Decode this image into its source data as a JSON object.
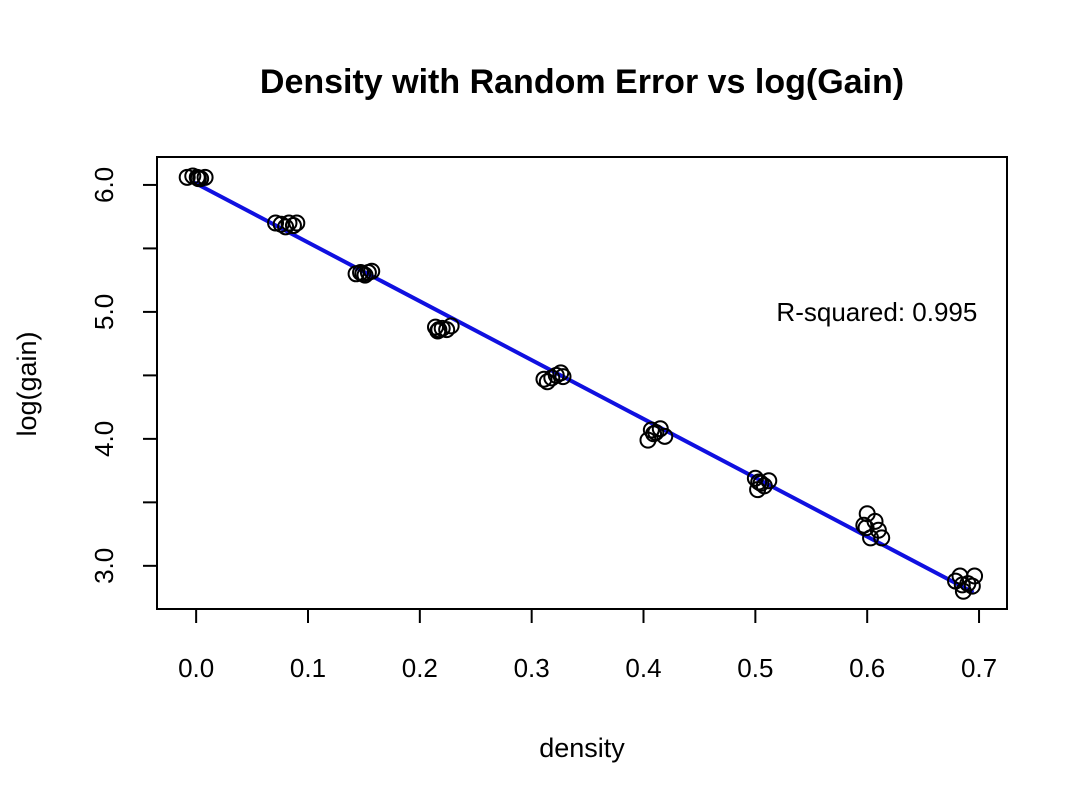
{
  "chart_data": {
    "type": "scatter",
    "title": "Density with Random Error vs log(Gain)",
    "xlabel": "density",
    "ylabel": "log(gain)",
    "xlim": [
      -0.035,
      0.725
    ],
    "ylim": [
      2.66,
      6.22
    ],
    "x_ticks": [
      0.0,
      0.1,
      0.2,
      0.3,
      0.4,
      0.5,
      0.6,
      0.7
    ],
    "x_tick_labels": [
      "0.0",
      "0.1",
      "0.2",
      "0.3",
      "0.4",
      "0.5",
      "0.6",
      "0.7"
    ],
    "y_ticks": [
      3.0,
      3.5,
      4.0,
      4.5,
      5.0,
      5.5,
      6.0
    ],
    "y_tick_labels": [
      "3.0",
      "",
      "4.0",
      "",
      "5.0",
      "",
      "6.0"
    ],
    "grid": false,
    "points": {
      "x": [
        -0.008,
        -0.003,
        0.001,
        0.004,
        0.008,
        0.002,
        0.071,
        0.076,
        0.08,
        0.083,
        0.087,
        0.09,
        0.143,
        0.147,
        0.151,
        0.154,
        0.157,
        0.149,
        0.214,
        0.217,
        0.22,
        0.224,
        0.228,
        0.216,
        0.311,
        0.314,
        0.318,
        0.322,
        0.326,
        0.328,
        0.404,
        0.407,
        0.411,
        0.415,
        0.419,
        0.409,
        0.5,
        0.502,
        0.505,
        0.508,
        0.512,
        0.503,
        0.597,
        0.6,
        0.603,
        0.607,
        0.61,
        0.613,
        0.599,
        0.679,
        0.683,
        0.686,
        0.69,
        0.694,
        0.696,
        0.685
      ],
      "y": [
        6.06,
        6.07,
        6.06,
        6.05,
        6.06,
        6.05,
        5.7,
        5.69,
        5.67,
        5.7,
        5.68,
        5.7,
        5.3,
        5.31,
        5.29,
        5.31,
        5.32,
        5.3,
        4.88,
        4.86,
        4.87,
        4.86,
        4.89,
        4.85,
        4.47,
        4.45,
        4.48,
        4.5,
        4.52,
        4.49,
        3.99,
        4.07,
        4.05,
        4.08,
        4.02,
        4.04,
        3.69,
        3.6,
        3.65,
        3.63,
        3.67,
        3.66,
        3.32,
        3.41,
        3.22,
        3.35,
        3.28,
        3.22,
        3.3,
        2.88,
        2.92,
        2.8,
        2.86,
        2.84,
        2.92,
        2.85
      ]
    },
    "fit_line": {
      "x": [
        -0.002,
        0.695
      ],
      "y": [
        6.02,
        2.79
      ],
      "color": "#1010e0"
    },
    "annotation": "R-squared: 0.995",
    "annotation_pos": [
      0.711,
      5.0
    ],
    "point_color": "#000000"
  }
}
